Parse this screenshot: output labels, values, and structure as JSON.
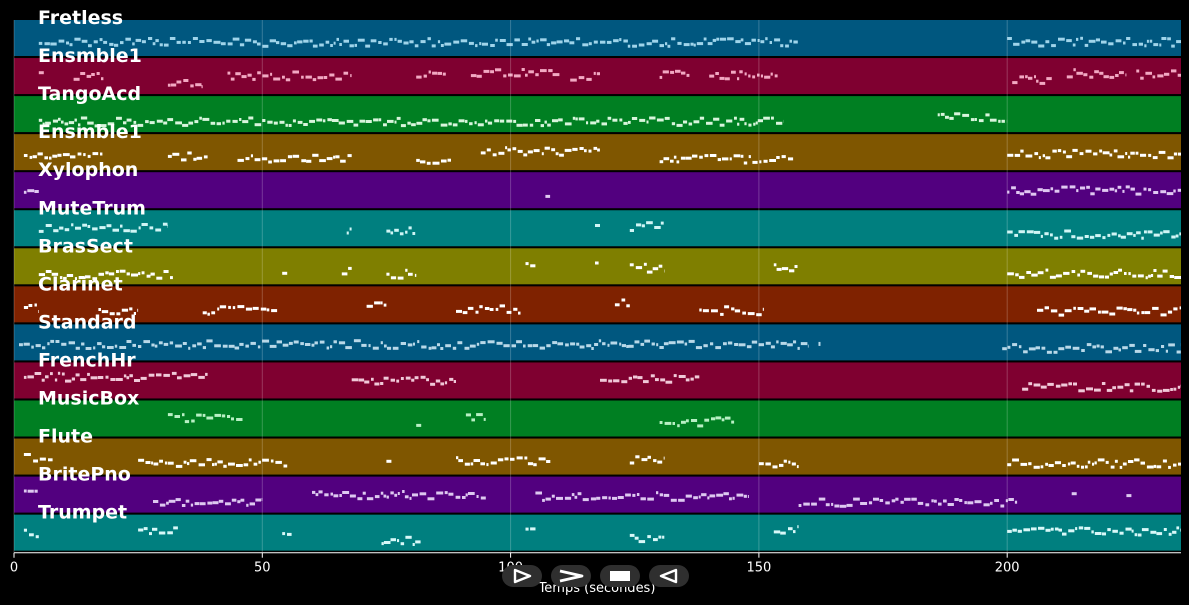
{
  "chart_data": {
    "type": "piano-roll",
    "xlabel": "Temps (secondes)",
    "xlim": [
      0,
      235
    ],
    "x_ticks": [
      0,
      50,
      100,
      150,
      200
    ],
    "grid": true,
    "tracks": [
      {
        "name": "Fretless",
        "color": "#00577f",
        "note": "#9fd4ea",
        "segments": [
          [
            5,
            158
          ],
          [
            200,
            235
          ]
        ]
      },
      {
        "name": "Ensmble1",
        "color": "#7f0030",
        "note": "#f2a8c2",
        "segments": [
          [
            5,
            6
          ],
          [
            12,
            18
          ],
          [
            31,
            38
          ],
          [
            43,
            68
          ],
          [
            81,
            87
          ],
          [
            92,
            110
          ],
          [
            112,
            118
          ],
          [
            130,
            136
          ],
          [
            140,
            154
          ],
          [
            201,
            209
          ],
          [
            212,
            224
          ],
          [
            226,
            235
          ]
        ]
      },
      {
        "name": "TangoAcd",
        "color": "#007f22",
        "note": "#d8f5dc",
        "segments": [
          [
            5,
            155
          ],
          [
            186,
            200
          ]
        ]
      },
      {
        "name": "Ensmble1",
        "color": "#7f5600",
        "note": "#ffffff",
        "segments": [
          [
            2,
            18
          ],
          [
            31,
            39
          ],
          [
            45,
            68
          ],
          [
            81,
            88
          ],
          [
            94,
            118
          ],
          [
            130,
            157
          ],
          [
            200,
            235
          ]
        ]
      },
      {
        "name": "Xylophon",
        "color": "#52007f",
        "note": "#e0c8f2",
        "segments": [
          [
            2,
            5
          ],
          [
            107,
            108
          ],
          [
            200,
            235
          ]
        ]
      },
      {
        "name": "MuteTrum",
        "color": "#007f7f",
        "note": "#d0f5f5",
        "segments": [
          [
            5,
            31
          ],
          [
            67,
            68
          ],
          [
            75,
            81
          ],
          [
            117,
            118
          ],
          [
            124,
            131
          ],
          [
            200,
            235
          ]
        ]
      },
      {
        "name": "BrasSect",
        "color": "#7f7f00",
        "note": "#ffffff",
        "segments": [
          [
            5,
            32
          ],
          [
            54,
            55
          ],
          [
            66,
            68
          ],
          [
            75,
            81
          ],
          [
            103,
            105
          ],
          [
            117,
            118
          ],
          [
            124,
            131
          ],
          [
            153,
            158
          ],
          [
            200,
            235
          ]
        ]
      },
      {
        "name": "Clarinet",
        "color": "#7f2200",
        "note": "#ffffff",
        "segments": [
          [
            2,
            5
          ],
          [
            17,
            25
          ],
          [
            38,
            53
          ],
          [
            71,
            75
          ],
          [
            89,
            102
          ],
          [
            121,
            124
          ],
          [
            138,
            151
          ],
          [
            206,
            235
          ]
        ]
      },
      {
        "name": "Standard",
        "color": "#00577f",
        "note": "#b8d8e8",
        "segments": [
          [
            1,
            160
          ],
          [
            162,
            162
          ],
          [
            199,
            235
          ]
        ]
      },
      {
        "name": "FrenchHr",
        "color": "#7f0030",
        "note": "#f0c8d8",
        "segments": [
          [
            2,
            39
          ],
          [
            68,
            89
          ],
          [
            118,
            138
          ],
          [
            203,
            235
          ]
        ]
      },
      {
        "name": "MusicBox",
        "color": "#007f22",
        "note": "#b8f0c4",
        "segments": [
          [
            31,
            46
          ],
          [
            81,
            82
          ],
          [
            91,
            95
          ],
          [
            130,
            145
          ]
        ]
      },
      {
        "name": "Flute",
        "color": "#7f5600",
        "note": "#ffffff",
        "segments": [
          [
            2,
            8
          ],
          [
            25,
            55
          ],
          [
            75,
            76
          ],
          [
            89,
            108
          ],
          [
            124,
            131
          ],
          [
            150,
            158
          ],
          [
            200,
            235
          ]
        ]
      },
      {
        "name": "BritePno",
        "color": "#52007f",
        "note": "#ddc8f0",
        "segments": [
          [
            2,
            5
          ],
          [
            28,
            50
          ],
          [
            60,
            95
          ],
          [
            105,
            148
          ],
          [
            158,
            202
          ],
          [
            213,
            214
          ],
          [
            224,
            225
          ]
        ]
      },
      {
        "name": "Trumpet",
        "color": "#007f7f",
        "note": "#d8f8f8",
        "segments": [
          [
            2,
            5
          ],
          [
            25,
            33
          ],
          [
            54,
            56
          ],
          [
            74,
            82
          ],
          [
            103,
            105
          ],
          [
            124,
            131
          ],
          [
            153,
            158
          ],
          [
            200,
            235
          ]
        ]
      }
    ]
  },
  "controls": {
    "play_icon": "play-icon",
    "fast_forward_icon": "fast-forward-icon",
    "stop_icon": "stop-icon",
    "rewind_icon": "rewind-icon"
  }
}
